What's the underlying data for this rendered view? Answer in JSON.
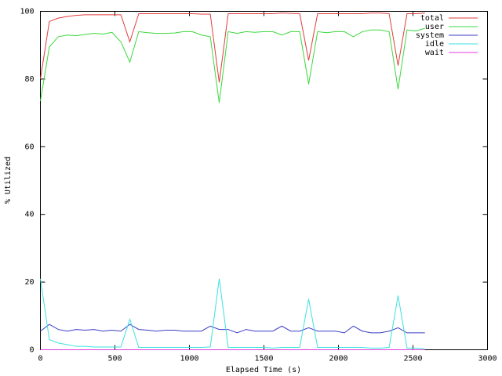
{
  "chart_data": {
    "type": "line",
    "xlabel": "Elapsed Time (s)",
    "ylabel": "% Utilized",
    "xlim": [
      0,
      3000
    ],
    "xticks": [
      0,
      500,
      1000,
      1500,
      2000,
      2500,
      3000
    ],
    "ylim": [
      0,
      100
    ],
    "yticks": [
      0,
      20,
      40,
      60,
      80,
      100
    ],
    "legend": "top-right",
    "x": [
      0,
      60,
      120,
      180,
      240,
      300,
      360,
      420,
      480,
      540,
      600,
      660,
      720,
      780,
      840,
      900,
      960,
      1020,
      1080,
      1140,
      1200,
      1260,
      1320,
      1380,
      1440,
      1500,
      1560,
      1620,
      1680,
      1740,
      1800,
      1860,
      1920,
      1980,
      2040,
      2100,
      2160,
      2220,
      2280,
      2340,
      2400,
      2460,
      2520,
      2580
    ],
    "series": [
      {
        "name": "total",
        "color": "#e03c3c",
        "values": [
          80,
          97,
          98,
          98.5,
          98.8,
          99,
          99,
          99,
          99,
          99,
          91,
          99.3,
          99.3,
          99.3,
          99.3,
          99.3,
          99.3,
          99.3,
          99.2,
          99.2,
          79,
          99.3,
          99.3,
          99.3,
          99.3,
          99.3,
          99.3,
          99.5,
          99.4,
          99.3,
          85.5,
          99.3,
          99.3,
          99.3,
          99.3,
          99.3,
          99.3,
          99.5,
          99.5,
          99.3,
          84,
          99.3,
          99.3,
          99.5
        ]
      },
      {
        "name": "user",
        "color": "#3cd83c",
        "values": [
          73.5,
          89.5,
          92.5,
          93,
          92.8,
          93.2,
          93.5,
          93.3,
          93.8,
          91,
          85,
          94,
          93.7,
          93.5,
          93.5,
          93.6,
          94,
          94,
          93,
          92.5,
          73,
          94,
          93.5,
          94,
          93.8,
          94,
          94,
          93,
          94,
          94,
          78.5,
          94,
          93.7,
          94,
          94,
          92.5,
          94,
          94.5,
          94.5,
          94,
          77,
          94.5,
          94.2,
          95
        ]
      },
      {
        "name": "system",
        "color": "#3c3cc8",
        "values": [
          5.5,
          7.5,
          6,
          5.5,
          6,
          5.8,
          6,
          5.5,
          5.8,
          5.5,
          7.5,
          6,
          5.8,
          5.5,
          5.8,
          5.8,
          5.5,
          5.5,
          5.5,
          7,
          6,
          6,
          5,
          6,
          5.5,
          5.5,
          5.5,
          7,
          5.5,
          5.5,
          6.5,
          5.5,
          5.5,
          5.5,
          5,
          7,
          5.5,
          5,
          5,
          5.5,
          6.5,
          5,
          5,
          5
        ]
      },
      {
        "name": "idle",
        "color": "#3ce0e0",
        "values": [
          21,
          3,
          2,
          1.5,
          1,
          1,
          0.8,
          0.8,
          0.8,
          0.8,
          9,
          0.7,
          0.7,
          0.7,
          0.7,
          0.7,
          0.7,
          0.7,
          0.7,
          0.8,
          21,
          0.7,
          0.7,
          0.7,
          0.7,
          0.7,
          0.5,
          0.7,
          0.7,
          0.7,
          15,
          0.7,
          0.7,
          0.7,
          0.7,
          0.7,
          0.7,
          0.5,
          0.5,
          0.7,
          16,
          0.5,
          0.5,
          0.3
        ]
      },
      {
        "name": "wait",
        "color": "#e03ce0",
        "values": [
          0,
          0,
          0,
          0,
          0,
          0,
          0,
          0,
          0,
          0,
          0,
          0,
          0,
          0,
          0,
          0,
          0,
          0,
          0,
          0,
          0,
          0,
          0,
          0,
          0,
          0,
          0,
          0,
          0,
          0,
          0,
          0,
          0,
          0,
          0,
          0,
          0,
          0,
          0,
          0,
          0,
          0,
          0,
          0
        ]
      }
    ]
  }
}
